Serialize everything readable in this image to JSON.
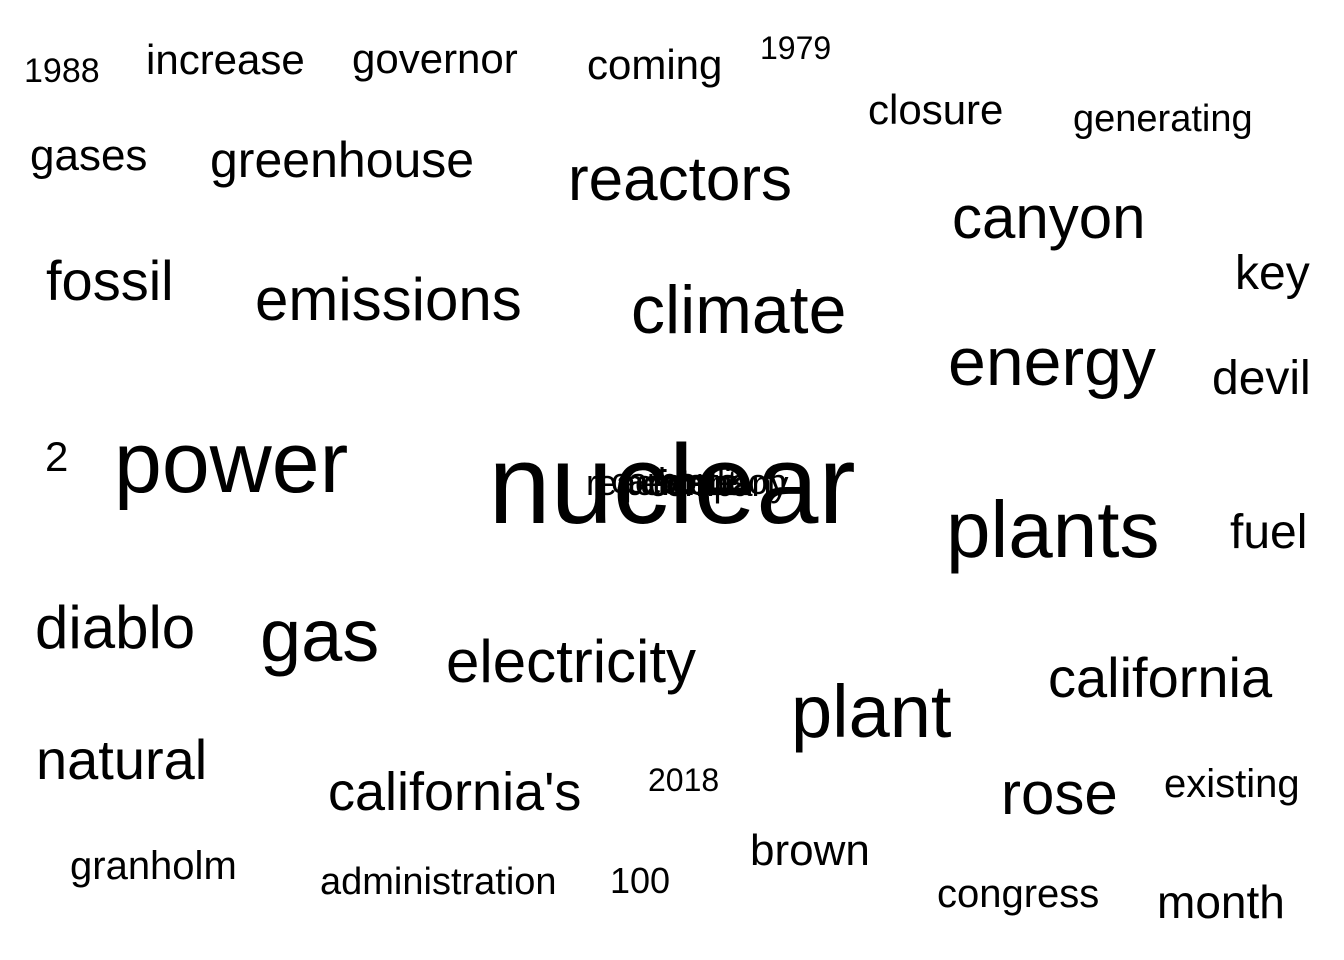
{
  "words": {
    "w_1988": "1988",
    "w_increase": "increase",
    "w_governor": "governor",
    "w_coming": "coming",
    "w_1979": "1979",
    "w_closure": "closure",
    "w_generating": "generating",
    "w_gases": "gases",
    "w_greenhouse": "greenhouse",
    "w_reactors": "reactors",
    "w_canyon": "canyon",
    "w_key": "key",
    "w_fossil": "fossil",
    "w_emissions": "emissions",
    "w_climate": "climate",
    "w_energy": "energy",
    "w_devil": "devil",
    "w_2": "2",
    "w_power": "power",
    "w_nuclear": "nuclear",
    "w_plants": "plants",
    "w_fuel": "fuel",
    "w_diablo": "diablo",
    "w_gas": "gas",
    "w_electricity": "electricity",
    "w_california": "california",
    "w_plant": "plant",
    "w_natural": "natural",
    "w_2018": "2018",
    "w_californias": "california's",
    "w_rose": "rose",
    "w_existing": "existing",
    "w_brown": "brown",
    "w_granholm": "granholm",
    "w_administration": "administration",
    "w_100": "100",
    "w_congress": "congress",
    "w_month": "month"
  },
  "overlap_cluster": [
    "reaction",
    "carbon",
    "percent",
    "state",
    "company",
    "edison"
  ],
  "colors": {
    "background": "#ffffff",
    "text": "#000000"
  }
}
